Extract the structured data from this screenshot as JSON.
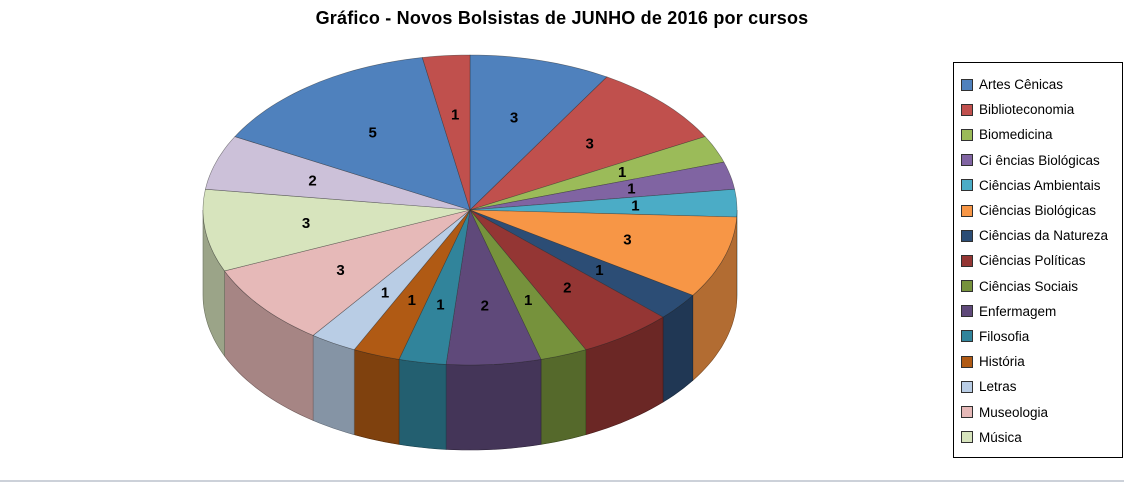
{
  "chart_data": {
    "type": "pie",
    "title": "Gráfico - Novos Bolsistas de JUNHO de 2016 por cursos",
    "style": "3d-pie",
    "legend_position": "right",
    "data_labels": "values-inside-slices",
    "slices": [
      {
        "label": "Artes Cênicas",
        "value": 3,
        "color": "#4f81bd",
        "in_legend": true
      },
      {
        "label": "Biblioteconomia",
        "value": 3,
        "color": "#c0504d",
        "in_legend": true
      },
      {
        "label": "Biomedicina",
        "value": 1,
        "color": "#9bbb59",
        "in_legend": true
      },
      {
        "label": "Ci ências Biológicas",
        "value": 1,
        "color": "#8064a2",
        "in_legend": true
      },
      {
        "label": "Ciências Ambientais",
        "value": 1,
        "color": "#4bacc6",
        "in_legend": true
      },
      {
        "label": "Ciências Biológicas",
        "value": 3,
        "color": "#f79646",
        "in_legend": true
      },
      {
        "label": "Ciências da Natureza",
        "value": 1,
        "color": "#2c4d75",
        "in_legend": true
      },
      {
        "label": "Ciências Políticas",
        "value": 2,
        "color": "#943634",
        "in_legend": true
      },
      {
        "label": "Ciências Sociais",
        "value": 1,
        "color": "#76923c",
        "in_legend": true
      },
      {
        "label": "Enfermagem",
        "value": 2,
        "color": "#5f497a",
        "in_legend": true
      },
      {
        "label": "Filosofia",
        "value": 1,
        "color": "#31849b",
        "in_legend": true
      },
      {
        "label": "História",
        "value": 1,
        "color": "#b05a14",
        "in_legend": true
      },
      {
        "label": "Letras",
        "value": 1,
        "color": "#b9cde5",
        "in_legend": true
      },
      {
        "label": "Museologia",
        "value": 3,
        "color": "#e6b9b8",
        "in_legend": true
      },
      {
        "label": "Música",
        "value": 3,
        "color": "#d7e4bd",
        "in_legend": true
      },
      {
        "label": "",
        "value": 2,
        "color": "#ccc1d9",
        "in_legend": false
      },
      {
        "label": "",
        "value": 5,
        "color": "#4f81bd",
        "in_legend": false
      },
      {
        "label": "",
        "value": 1,
        "color": "#c0504d",
        "in_legend": false
      }
    ]
  }
}
